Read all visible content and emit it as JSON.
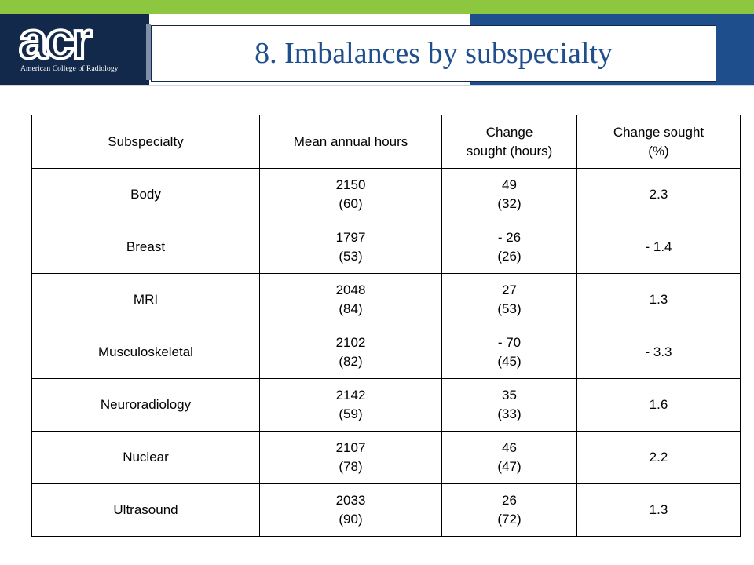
{
  "header": {
    "logo_text": "acr",
    "logo_subtitle": "American College of Radiology",
    "title": "8. Imbalances by subspecialty"
  },
  "colors": {
    "top_bar": "#8dc63f",
    "navy": "#13294b",
    "blue": "#1f4e8c",
    "title_text": "#1f4e8c"
  },
  "table": {
    "headers": [
      "Subspecialty",
      "Mean annual hours",
      "Change sought (hours)",
      "Change sought (%)"
    ],
    "header_lines": {
      "subspecialty": "Subspecialty",
      "mean_hours": "Mean annual hours",
      "change_hours_1": "Change",
      "change_hours_2": "sought (hours)",
      "change_pct_1": "Change sought",
      "change_pct_2": "(%)"
    },
    "rows": [
      {
        "subspecialty": "Body",
        "mean": "2150",
        "mean_sd": "(60)",
        "change": "49",
        "change_sd": "(32)",
        "pct": "2.3"
      },
      {
        "subspecialty": "Breast",
        "mean": "1797",
        "mean_sd": "(53)",
        "change": "- 26",
        "change_sd": "(26)",
        "pct": "- 1.4"
      },
      {
        "subspecialty": "MRI",
        "mean": "2048",
        "mean_sd": "(84)",
        "change": "27",
        "change_sd": "(53)",
        "pct": "1.3"
      },
      {
        "subspecialty": "Musculoskeletal",
        "mean": "2102",
        "mean_sd": "(82)",
        "change": "- 70",
        "change_sd": "(45)",
        "pct": "- 3.3"
      },
      {
        "subspecialty": "Neuroradiology",
        "mean": "2142",
        "mean_sd": "(59)",
        "change": "35",
        "change_sd": "(33)",
        "pct": "1.6"
      },
      {
        "subspecialty": "Nuclear",
        "mean": "2107",
        "mean_sd": "(78)",
        "change": "46",
        "change_sd": "(47)",
        "pct": "2.2"
      },
      {
        "subspecialty": "Ultrasound",
        "mean": "2033",
        "mean_sd": "(90)",
        "change": "26",
        "change_sd": "(72)",
        "pct": "1.3"
      }
    ]
  }
}
